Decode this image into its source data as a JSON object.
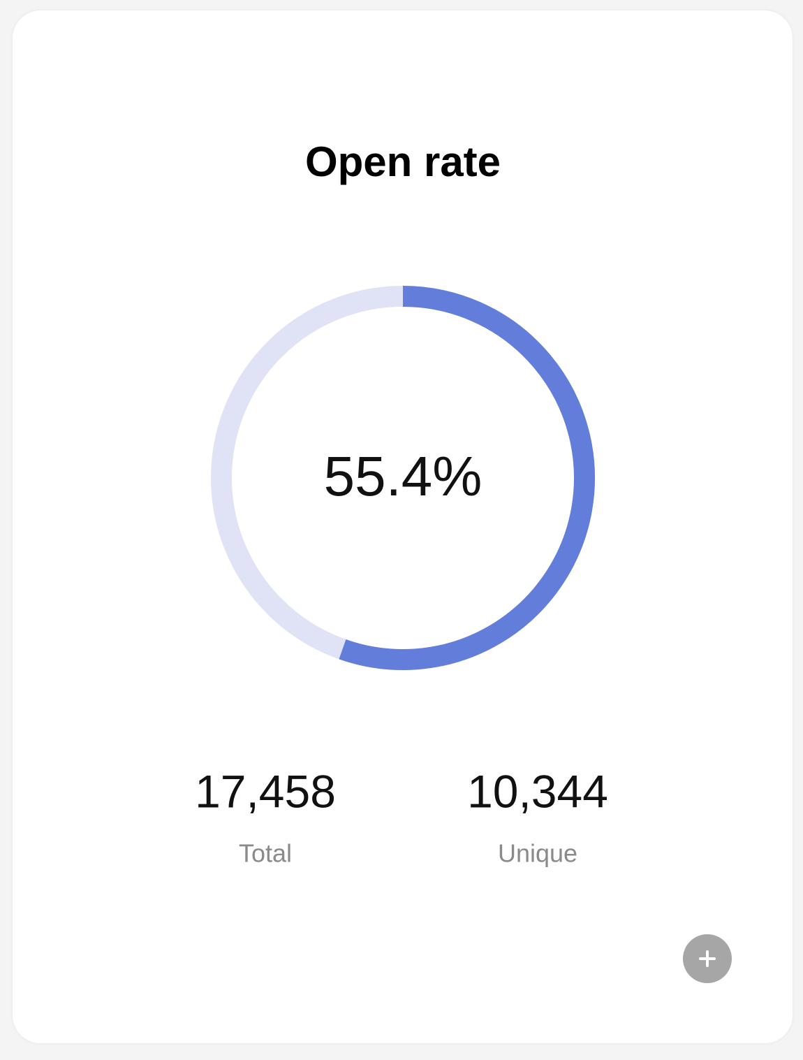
{
  "chart_data": {
    "type": "gauge",
    "title": "Open rate",
    "values": [
      55.4
    ],
    "value_labels": [
      "55.4%"
    ],
    "ylim": [
      0,
      100
    ],
    "color": "#637ddb",
    "track_color": "#dfe3f5"
  },
  "stats": [
    {
      "value": "17,458",
      "label": "Total"
    },
    {
      "value": "10,344",
      "label": "Unique"
    }
  ]
}
